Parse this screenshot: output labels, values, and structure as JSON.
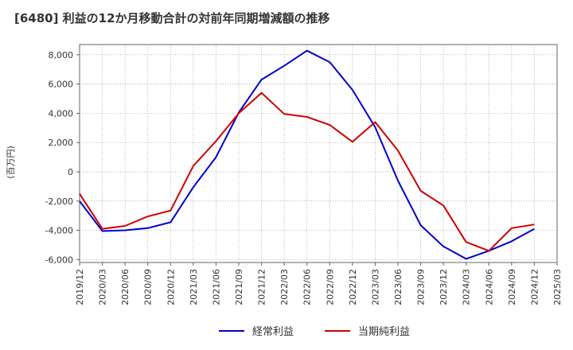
{
  "chart_data": {
    "type": "line",
    "title": "[6480]  利益の12か月移動合計の対前年同期増減額の推移",
    "xlabel": "",
    "ylabel": "(百万円)",
    "ylim": [
      -6200,
      8700
    ],
    "yticks": [
      8000,
      6000,
      4000,
      2000,
      0,
      -2000,
      -4000,
      -6000
    ],
    "ytick_labels": [
      "8,000",
      "6,000",
      "4,000",
      "2,000",
      "0",
      "-2,000",
      "-4,000",
      "-6,000"
    ],
    "categories": [
      "2019/12",
      "2020/03",
      "2020/06",
      "2020/09",
      "2020/12",
      "2021/03",
      "2021/06",
      "2021/09",
      "2021/12",
      "2022/03",
      "2022/06",
      "2022/09",
      "2022/12",
      "2023/03",
      "2023/06",
      "2023/09",
      "2023/12",
      "2024/03",
      "2024/06",
      "2024/09",
      "2024/12",
      "2025/03"
    ],
    "grid": true,
    "legend_position": "bottom",
    "series": [
      {
        "name": "経常利益",
        "color": "#0000cc",
        "values": [
          -2000,
          -4050,
          -4000,
          -3850,
          -3450,
          -1050,
          1000,
          4050,
          6300,
          7250,
          8280,
          7500,
          5600,
          3050,
          -600,
          -3650,
          -5100,
          -5950,
          -5400,
          -4750,
          -3900,
          null
        ]
      },
      {
        "name": "当期純利益",
        "color": "#cc0000",
        "values": [
          -1500,
          -3900,
          -3700,
          -3050,
          -2650,
          400,
          2100,
          4000,
          5400,
          3950,
          3750,
          3200,
          2050,
          3400,
          1450,
          -1300,
          -2300,
          -4800,
          -5400,
          -3850,
          -3600,
          null
        ]
      }
    ]
  }
}
